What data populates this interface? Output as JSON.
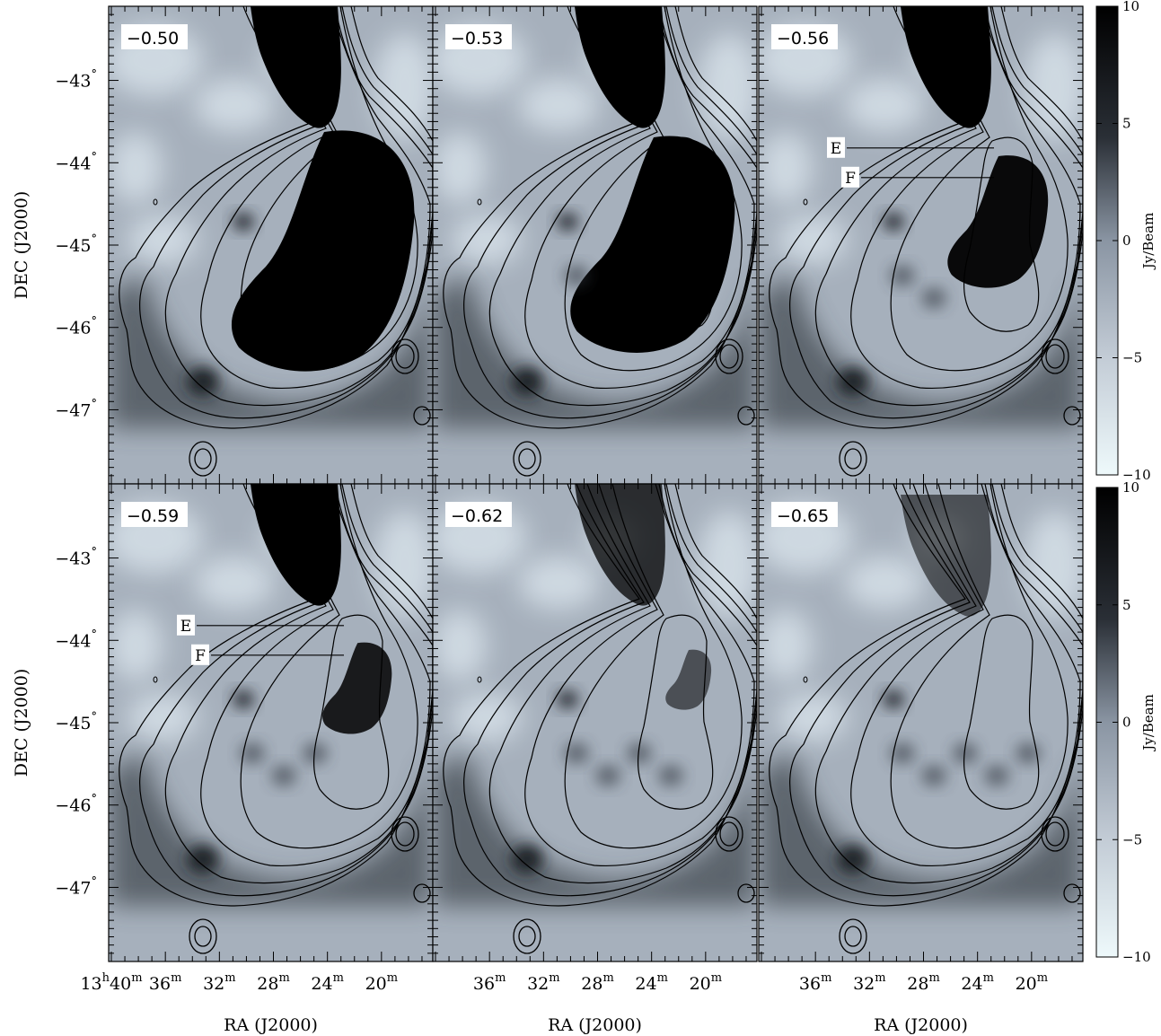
{
  "chart_data": {
    "type": "heatmap",
    "title": "",
    "xlabel": "RA (J2000)",
    "ylabel": "DEC (J2000)",
    "colorbar_label": "Jy/Beam",
    "colorbar_ticks": [
      "10",
      "5",
      "0",
      "−5",
      "−10"
    ],
    "colorbar_range": [
      -10,
      10
    ],
    "colormap": [
      "#eef7fb",
      "#9aa6b4",
      "#000000"
    ],
    "grid": false,
    "x_ticks": [
      {
        "label": "13h40m",
        "ra_min": 40,
        "first_column_only": true
      },
      {
        "label": "36m",
        "ra_min": 36
      },
      {
        "label": "32m",
        "ra_min": 32
      },
      {
        "label": "28m",
        "ra_min": 28
      },
      {
        "label": "24m",
        "ra_min": 24
      },
      {
        "label": "20m",
        "ra_min": 20
      }
    ],
    "y_ticks": [
      {
        "label": "−43°",
        "dec": -43
      },
      {
        "label": "−44°",
        "dec": -44
      },
      {
        "label": "−45°",
        "dec": -45
      },
      {
        "label": "−46°",
        "dec": -46
      },
      {
        "label": "−47°",
        "dec": -47
      }
    ],
    "ra_range_min": [
      40.2,
      16.2
    ],
    "dec_range_deg": [
      -42.1,
      -47.9
    ],
    "panels": [
      {
        "label": "−0.50",
        "show_EF": false,
        "emission": "full"
      },
      {
        "label": "−0.53",
        "show_EF": false,
        "emission": "strong"
      },
      {
        "label": "−0.56",
        "show_EF": true,
        "emission": "medium"
      },
      {
        "label": "−0.59",
        "show_EF": true,
        "emission": "moderate"
      },
      {
        "label": "−0.62",
        "show_EF": false,
        "emission": "weak"
      },
      {
        "label": "−0.65",
        "show_EF": false,
        "emission": "faint"
      }
    ],
    "markers": [
      {
        "label": "E",
        "line_dec": -43.82
      },
      {
        "label": "F",
        "line_dec": -44.18
      }
    ]
  }
}
